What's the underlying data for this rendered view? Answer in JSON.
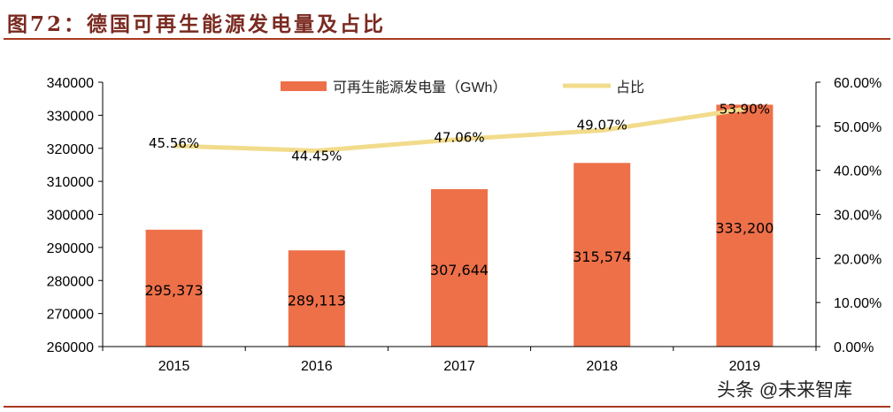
{
  "title": "图72：德国可再生能源发电量及占比",
  "watermark": "头条 @未来智库",
  "colors": {
    "bar": "#ee7049",
    "line": "#f2dc8c",
    "rule": "#a83a1f",
    "title": "#7a2a20"
  },
  "chart_data": {
    "type": "bar+line",
    "categories": [
      "2015",
      "2016",
      "2017",
      "2018",
      "2019"
    ],
    "series": [
      {
        "name": "可再生能源发电量（GWh）",
        "type": "bar",
        "axis": "left",
        "values": [
          295373,
          289113,
          307644,
          315574,
          333200
        ],
        "labels": [
          "295,373",
          "289,113",
          "307,644",
          "315,574",
          "333,200"
        ]
      },
      {
        "name": "占比",
        "type": "line",
        "axis": "right",
        "values": [
          45.56,
          44.45,
          47.06,
          49.07,
          53.9
        ],
        "labels": [
          "45.56%",
          "44.45%",
          "47.06%",
          "49.07%",
          "53.90%"
        ]
      }
    ],
    "y_left": {
      "range": [
        260000,
        340000
      ],
      "ticks": [
        "260000",
        "270000",
        "280000",
        "290000",
        "300000",
        "310000",
        "320000",
        "330000",
        "340000"
      ]
    },
    "y_right": {
      "range": [
        0,
        60
      ],
      "ticks": [
        "0.00%",
        "10.00%",
        "20.00%",
        "30.00%",
        "40.00%",
        "50.00%",
        "60.00%"
      ]
    },
    "grid": false,
    "legend": "top"
  }
}
